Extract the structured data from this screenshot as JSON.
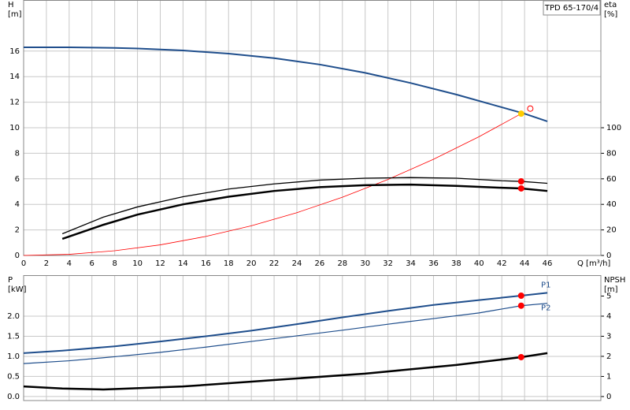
{
  "chart_data": [
    {
      "type": "line",
      "title": "TPD 65-170/4",
      "ylabel": [
        "H",
        "[m]"
      ],
      "y2label": [
        "eta",
        "[%]"
      ],
      "xlabel": "Q [m³/h]",
      "xlim": [
        0,
        50.7
      ],
      "xticks": [
        0,
        2,
        4,
        6,
        8,
        10,
        12,
        14,
        16,
        18,
        20,
        22,
        24,
        26,
        28,
        30,
        32,
        34,
        36,
        38,
        40,
        42,
        44,
        46
      ],
      "ylim": [
        0,
        20
      ],
      "yticks": [
        0,
        2,
        4,
        6,
        8,
        10,
        12,
        14,
        16
      ],
      "y2lim": [
        0,
        200
      ],
      "y2ticks": [
        0,
        20,
        40,
        60,
        80,
        100
      ],
      "grid": true,
      "xtick_labels": true,
      "series": [
        {
          "color": "#1f4e8c",
          "line_width": 2,
          "axis": "y",
          "x": [
            0,
            4,
            8,
            10,
            14,
            18,
            22,
            26,
            30,
            34,
            38,
            42,
            44,
            46
          ],
          "values": [
            16.3,
            16.3,
            16.25,
            16.2,
            16.05,
            15.8,
            15.45,
            14.95,
            14.3,
            13.5,
            12.6,
            11.6,
            11.1,
            10.5
          ]
        },
        {
          "color": "#ff0000",
          "line_width": 0.8,
          "axis": "y",
          "x": [
            0,
            4,
            8,
            12,
            16,
            20,
            24,
            28,
            32,
            36,
            40,
            43.7
          ],
          "values": [
            0,
            0.09,
            0.37,
            0.83,
            1.49,
            2.32,
            3.35,
            4.56,
            5.95,
            7.53,
            9.3,
            11.1
          ]
        },
        {
          "color": "#000000",
          "line_width": 1.3,
          "axis": "y2",
          "x": [
            3.4,
            7,
            10,
            14,
            18,
            22,
            26,
            30,
            34,
            38,
            42,
            43.7,
            46
          ],
          "values": [
            17,
            30,
            38,
            46,
            52,
            56,
            59,
            60.5,
            61,
            60.5,
            58.5,
            58,
            56.5
          ]
        },
        {
          "color": "#000000",
          "line_width": 2.5,
          "axis": "y2",
          "x": [
            3.4,
            7,
            10,
            14,
            18,
            22,
            26,
            30,
            34,
            38,
            42,
            43.7,
            46
          ],
          "values": [
            13,
            24,
            32,
            40,
            46,
            50.5,
            53.5,
            55,
            55.5,
            54.5,
            53,
            52.5,
            50.5
          ]
        }
      ],
      "markers": [
        {
          "x": 43.7,
          "y": 58,
          "axis": "y2",
          "color": "#ff0000",
          "fill": true
        },
        {
          "x": 43.7,
          "y": 52.5,
          "axis": "y2",
          "color": "#ff0000",
          "fill": true
        },
        {
          "x": 43.7,
          "y": 11.1,
          "axis": "y",
          "color": "#ffcc00",
          "fill": true
        },
        {
          "x": 44.5,
          "y": 11.5,
          "axis": "y",
          "color": "#ff0000",
          "fill": false
        }
      ]
    },
    {
      "type": "line",
      "ylabel": [
        "P",
        "[kW]"
      ],
      "y2label": [
        "NPSH",
        "[m]"
      ],
      "xlim": [
        0,
        50.7
      ],
      "xticks": [
        0,
        2,
        4,
        6,
        8,
        10,
        12,
        14,
        16,
        18,
        20,
        22,
        24,
        26,
        28,
        30,
        32,
        34,
        36,
        38,
        40,
        42,
        44,
        46
      ],
      "ylim": [
        -0.1,
        3.02
      ],
      "yticks": [
        {
          "value": 0,
          "label": "0.0"
        },
        0.5,
        {
          "value": 1,
          "label": "1.0"
        },
        1.5,
        {
          "value": 2,
          "label": "2.0"
        }
      ],
      "y2lim": [
        -0.2,
        6.04
      ],
      "y2ticks": [
        0,
        1,
        2,
        3,
        4,
        5
      ],
      "grid": true,
      "xtick_labels": false,
      "series": [
        {
          "name": "P1",
          "color": "#1f4e8c",
          "line_width": 2,
          "axis": "y",
          "x": [
            0,
            3.4,
            8,
            12,
            16,
            20,
            24,
            28,
            32,
            36,
            40,
            43.7,
            46
          ],
          "values": [
            1.08,
            1.14,
            1.25,
            1.37,
            1.5,
            1.64,
            1.8,
            1.97,
            2.13,
            2.28,
            2.4,
            2.51,
            2.58
          ]
        },
        {
          "name": "P2",
          "color": "#1f4e8c",
          "line_width": 1.2,
          "axis": "y",
          "x": [
            0,
            4,
            8,
            12,
            16,
            20,
            24,
            28,
            32,
            36,
            40,
            43.7,
            46
          ],
          "values": [
            0.82,
            0.89,
            0.99,
            1.1,
            1.23,
            1.37,
            1.51,
            1.65,
            1.8,
            1.94,
            2.08,
            2.26,
            2.32
          ]
        },
        {
          "color": "#000000",
          "line_width": 2.5,
          "axis": "y2",
          "x": [
            0,
            3.4,
            7,
            14,
            22,
            30,
            38,
            43.7,
            46
          ],
          "values": [
            0.5,
            0.4,
            0.35,
            0.5,
            0.82,
            1.14,
            1.57,
            1.96,
            2.16
          ]
        }
      ],
      "markers": [
        {
          "x": 43.7,
          "y": 2.51,
          "axis": "y",
          "color": "#ff0000",
          "fill": true
        },
        {
          "x": 43.7,
          "y": 2.26,
          "axis": "y",
          "color": "#ff0000",
          "fill": true
        },
        {
          "x": 43.7,
          "y": 1.96,
          "axis": "y2",
          "color": "#ff0000",
          "fill": true
        }
      ]
    }
  ]
}
